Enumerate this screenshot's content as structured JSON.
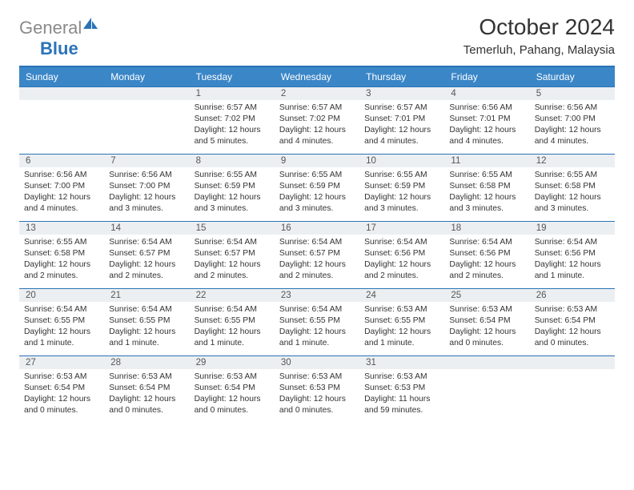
{
  "logo": {
    "gray": "General",
    "blue": "Blue"
  },
  "title": "October 2024",
  "location": "Temerluh, Pahang, Malaysia",
  "dayNames": [
    "Sunday",
    "Monday",
    "Tuesday",
    "Wednesday",
    "Thursday",
    "Friday",
    "Saturday"
  ],
  "colors": {
    "headerBg": "#3a86c7",
    "borderBlue": "#2a73b8",
    "numBarBg": "#eceff1",
    "text": "#333333"
  },
  "weeks": [
    [
      {
        "n": "",
        "sr": "",
        "ss": "",
        "dl": ""
      },
      {
        "n": "",
        "sr": "",
        "ss": "",
        "dl": ""
      },
      {
        "n": "1",
        "sr": "Sunrise: 6:57 AM",
        "ss": "Sunset: 7:02 PM",
        "dl": "Daylight: 12 hours and 5 minutes."
      },
      {
        "n": "2",
        "sr": "Sunrise: 6:57 AM",
        "ss": "Sunset: 7:02 PM",
        "dl": "Daylight: 12 hours and 4 minutes."
      },
      {
        "n": "3",
        "sr": "Sunrise: 6:57 AM",
        "ss": "Sunset: 7:01 PM",
        "dl": "Daylight: 12 hours and 4 minutes."
      },
      {
        "n": "4",
        "sr": "Sunrise: 6:56 AM",
        "ss": "Sunset: 7:01 PM",
        "dl": "Daylight: 12 hours and 4 minutes."
      },
      {
        "n": "5",
        "sr": "Sunrise: 6:56 AM",
        "ss": "Sunset: 7:00 PM",
        "dl": "Daylight: 12 hours and 4 minutes."
      }
    ],
    [
      {
        "n": "6",
        "sr": "Sunrise: 6:56 AM",
        "ss": "Sunset: 7:00 PM",
        "dl": "Daylight: 12 hours and 4 minutes."
      },
      {
        "n": "7",
        "sr": "Sunrise: 6:56 AM",
        "ss": "Sunset: 7:00 PM",
        "dl": "Daylight: 12 hours and 3 minutes."
      },
      {
        "n": "8",
        "sr": "Sunrise: 6:55 AM",
        "ss": "Sunset: 6:59 PM",
        "dl": "Daylight: 12 hours and 3 minutes."
      },
      {
        "n": "9",
        "sr": "Sunrise: 6:55 AM",
        "ss": "Sunset: 6:59 PM",
        "dl": "Daylight: 12 hours and 3 minutes."
      },
      {
        "n": "10",
        "sr": "Sunrise: 6:55 AM",
        "ss": "Sunset: 6:59 PM",
        "dl": "Daylight: 12 hours and 3 minutes."
      },
      {
        "n": "11",
        "sr": "Sunrise: 6:55 AM",
        "ss": "Sunset: 6:58 PM",
        "dl": "Daylight: 12 hours and 3 minutes."
      },
      {
        "n": "12",
        "sr": "Sunrise: 6:55 AM",
        "ss": "Sunset: 6:58 PM",
        "dl": "Daylight: 12 hours and 3 minutes."
      }
    ],
    [
      {
        "n": "13",
        "sr": "Sunrise: 6:55 AM",
        "ss": "Sunset: 6:58 PM",
        "dl": "Daylight: 12 hours and 2 minutes."
      },
      {
        "n": "14",
        "sr": "Sunrise: 6:54 AM",
        "ss": "Sunset: 6:57 PM",
        "dl": "Daylight: 12 hours and 2 minutes."
      },
      {
        "n": "15",
        "sr": "Sunrise: 6:54 AM",
        "ss": "Sunset: 6:57 PM",
        "dl": "Daylight: 12 hours and 2 minutes."
      },
      {
        "n": "16",
        "sr": "Sunrise: 6:54 AM",
        "ss": "Sunset: 6:57 PM",
        "dl": "Daylight: 12 hours and 2 minutes."
      },
      {
        "n": "17",
        "sr": "Sunrise: 6:54 AM",
        "ss": "Sunset: 6:56 PM",
        "dl": "Daylight: 12 hours and 2 minutes."
      },
      {
        "n": "18",
        "sr": "Sunrise: 6:54 AM",
        "ss": "Sunset: 6:56 PM",
        "dl": "Daylight: 12 hours and 2 minutes."
      },
      {
        "n": "19",
        "sr": "Sunrise: 6:54 AM",
        "ss": "Sunset: 6:56 PM",
        "dl": "Daylight: 12 hours and 1 minute."
      }
    ],
    [
      {
        "n": "20",
        "sr": "Sunrise: 6:54 AM",
        "ss": "Sunset: 6:55 PM",
        "dl": "Daylight: 12 hours and 1 minute."
      },
      {
        "n": "21",
        "sr": "Sunrise: 6:54 AM",
        "ss": "Sunset: 6:55 PM",
        "dl": "Daylight: 12 hours and 1 minute."
      },
      {
        "n": "22",
        "sr": "Sunrise: 6:54 AM",
        "ss": "Sunset: 6:55 PM",
        "dl": "Daylight: 12 hours and 1 minute."
      },
      {
        "n": "23",
        "sr": "Sunrise: 6:54 AM",
        "ss": "Sunset: 6:55 PM",
        "dl": "Daylight: 12 hours and 1 minute."
      },
      {
        "n": "24",
        "sr": "Sunrise: 6:53 AM",
        "ss": "Sunset: 6:55 PM",
        "dl": "Daylight: 12 hours and 1 minute."
      },
      {
        "n": "25",
        "sr": "Sunrise: 6:53 AM",
        "ss": "Sunset: 6:54 PM",
        "dl": "Daylight: 12 hours and 0 minutes."
      },
      {
        "n": "26",
        "sr": "Sunrise: 6:53 AM",
        "ss": "Sunset: 6:54 PM",
        "dl": "Daylight: 12 hours and 0 minutes."
      }
    ],
    [
      {
        "n": "27",
        "sr": "Sunrise: 6:53 AM",
        "ss": "Sunset: 6:54 PM",
        "dl": "Daylight: 12 hours and 0 minutes."
      },
      {
        "n": "28",
        "sr": "Sunrise: 6:53 AM",
        "ss": "Sunset: 6:54 PM",
        "dl": "Daylight: 12 hours and 0 minutes."
      },
      {
        "n": "29",
        "sr": "Sunrise: 6:53 AM",
        "ss": "Sunset: 6:54 PM",
        "dl": "Daylight: 12 hours and 0 minutes."
      },
      {
        "n": "30",
        "sr": "Sunrise: 6:53 AM",
        "ss": "Sunset: 6:53 PM",
        "dl": "Daylight: 12 hours and 0 minutes."
      },
      {
        "n": "31",
        "sr": "Sunrise: 6:53 AM",
        "ss": "Sunset: 6:53 PM",
        "dl": "Daylight: 11 hours and 59 minutes."
      },
      {
        "n": "",
        "sr": "",
        "ss": "",
        "dl": ""
      },
      {
        "n": "",
        "sr": "",
        "ss": "",
        "dl": ""
      }
    ]
  ]
}
